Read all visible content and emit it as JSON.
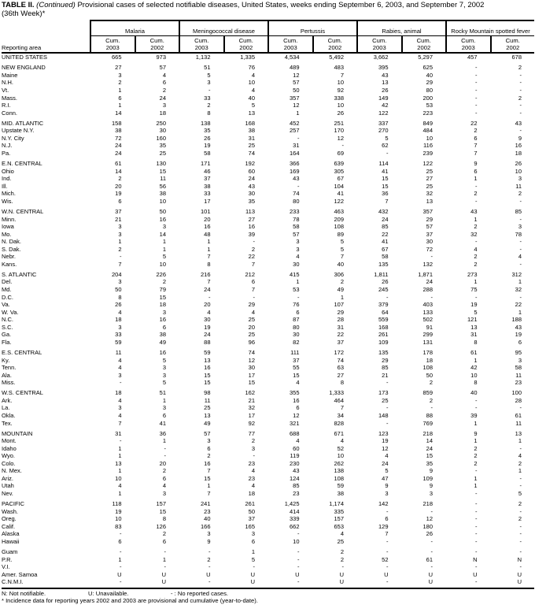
{
  "title": {
    "bold": "TABLE II.",
    "italic": "(Continued)",
    "rest": "Provisional cases of selected notifiable diseases, United States, weeks ending September 6, 2003, and September 7, 2002",
    "line2": "(36th Week)*"
  },
  "header": {
    "reporting_area": "Reporting area",
    "cum_label": "Cum.",
    "years": [
      "2003",
      "2002"
    ],
    "groups": [
      "Malaria",
      "Meningococcal disease",
      "Pertussis",
      "Rabies, animal",
      "Rocky Mountain spotted fever"
    ]
  },
  "rows": [
    {
      "area": "UNITED STATES",
      "values": [
        "665",
        "973",
        "1,132",
        "1,335",
        "4,534",
        "5,492",
        "3,662",
        "5,297",
        "457",
        "678"
      ]
    },
    {
      "area": "NEW ENGLAND",
      "gap": true,
      "values": [
        "27",
        "57",
        "51",
        "76",
        "489",
        "483",
        "395",
        "625",
        "-",
        "2"
      ]
    },
    {
      "area": "Maine",
      "values": [
        "3",
        "4",
        "5",
        "4",
        "12",
        "7",
        "43",
        "40",
        "-",
        "-"
      ]
    },
    {
      "area": "N.H.",
      "values": [
        "2",
        "6",
        "3",
        "10",
        "57",
        "10",
        "13",
        "29",
        "-",
        "-"
      ]
    },
    {
      "area": "Vt.",
      "values": [
        "1",
        "2",
        "-",
        "4",
        "50",
        "92",
        "26",
        "80",
        "-",
        "-"
      ]
    },
    {
      "area": "Mass.",
      "values": [
        "6",
        "24",
        "33",
        "40",
        "357",
        "338",
        "149",
        "200",
        "-",
        "2"
      ]
    },
    {
      "area": "R.I.",
      "values": [
        "1",
        "3",
        "2",
        "5",
        "12",
        "10",
        "42",
        "53",
        "-",
        "-"
      ]
    },
    {
      "area": "Conn.",
      "values": [
        "14",
        "18",
        "8",
        "13",
        "1",
        "26",
        "122",
        "223",
        "-",
        "-"
      ]
    },
    {
      "area": "MID. ATLANTIC",
      "gap": true,
      "values": [
        "158",
        "250",
        "138",
        "168",
        "452",
        "251",
        "337",
        "849",
        "22",
        "43"
      ]
    },
    {
      "area": "Upstate N.Y.",
      "values": [
        "38",
        "30",
        "35",
        "38",
        "257",
        "170",
        "270",
        "484",
        "2",
        "-"
      ]
    },
    {
      "area": "N.Y. City",
      "values": [
        "72",
        "160",
        "26",
        "31",
        "-",
        "12",
        "5",
        "10",
        "6",
        "9"
      ]
    },
    {
      "area": "N.J.",
      "values": [
        "24",
        "35",
        "19",
        "25",
        "31",
        "-",
        "62",
        "116",
        "7",
        "16"
      ]
    },
    {
      "area": "Pa.",
      "values": [
        "24",
        "25",
        "58",
        "74",
        "164",
        "69",
        "-",
        "239",
        "7",
        "18"
      ]
    },
    {
      "area": "E.N. CENTRAL",
      "gap": true,
      "values": [
        "61",
        "130",
        "171",
        "192",
        "366",
        "639",
        "114",
        "122",
        "9",
        "26"
      ]
    },
    {
      "area": "Ohio",
      "values": [
        "14",
        "15",
        "46",
        "60",
        "169",
        "305",
        "41",
        "25",
        "6",
        "10"
      ]
    },
    {
      "area": "Ind.",
      "values": [
        "2",
        "11",
        "37",
        "24",
        "43",
        "67",
        "15",
        "27",
        "1",
        "3"
      ]
    },
    {
      "area": "Ill.",
      "values": [
        "20",
        "56",
        "38",
        "43",
        "-",
        "104",
        "15",
        "25",
        "-",
        "11"
      ]
    },
    {
      "area": "Mich.",
      "values": [
        "19",
        "38",
        "33",
        "30",
        "74",
        "41",
        "36",
        "32",
        "2",
        "2"
      ]
    },
    {
      "area": "Wis.",
      "values": [
        "6",
        "10",
        "17",
        "35",
        "80",
        "122",
        "7",
        "13",
        "-",
        "-"
      ]
    },
    {
      "area": "W.N. CENTRAL",
      "gap": true,
      "values": [
        "37",
        "50",
        "101",
        "113",
        "233",
        "463",
        "432",
        "357",
        "43",
        "85"
      ]
    },
    {
      "area": "Minn.",
      "values": [
        "21",
        "16",
        "20",
        "27",
        "78",
        "209",
        "24",
        "29",
        "1",
        "-"
      ]
    },
    {
      "area": "Iowa",
      "values": [
        "3",
        "3",
        "16",
        "16",
        "58",
        "108",
        "85",
        "57",
        "2",
        "3"
      ]
    },
    {
      "area": "Mo.",
      "values": [
        "3",
        "14",
        "48",
        "39",
        "57",
        "89",
        "22",
        "37",
        "32",
        "78"
      ]
    },
    {
      "area": "N. Dak.",
      "values": [
        "1",
        "1",
        "1",
        "-",
        "3",
        "5",
        "41",
        "30",
        "-",
        "-"
      ]
    },
    {
      "area": "S. Dak.",
      "values": [
        "2",
        "1",
        "1",
        "2",
        "3",
        "5",
        "67",
        "72",
        "4",
        "-"
      ]
    },
    {
      "area": "Nebr.",
      "values": [
        "-",
        "5",
        "7",
        "22",
        "4",
        "7",
        "58",
        "-",
        "2",
        "4"
      ]
    },
    {
      "area": "Kans.",
      "values": [
        "7",
        "10",
        "8",
        "7",
        "30",
        "40",
        "135",
        "132",
        "2",
        "-"
      ]
    },
    {
      "area": "S. ATLANTIC",
      "gap": true,
      "values": [
        "204",
        "226",
        "216",
        "212",
        "415",
        "306",
        "1,811",
        "1,871",
        "273",
        "312"
      ]
    },
    {
      "area": "Del.",
      "values": [
        "3",
        "2",
        "7",
        "6",
        "1",
        "2",
        "26",
        "24",
        "1",
        "1"
      ]
    },
    {
      "area": "Md.",
      "values": [
        "50",
        "79",
        "24",
        "7",
        "53",
        "49",
        "245",
        "288",
        "75",
        "32"
      ]
    },
    {
      "area": "D.C.",
      "values": [
        "8",
        "15",
        "-",
        "-",
        "-",
        "1",
        "-",
        "-",
        "-",
        "-"
      ]
    },
    {
      "area": "Va.",
      "values": [
        "26",
        "18",
        "20",
        "29",
        "76",
        "107",
        "379",
        "403",
        "19",
        "22"
      ]
    },
    {
      "area": "W. Va.",
      "values": [
        "4",
        "3",
        "4",
        "4",
        "6",
        "29",
        "64",
        "133",
        "5",
        "1"
      ]
    },
    {
      "area": "N.C.",
      "values": [
        "18",
        "16",
        "30",
        "25",
        "87",
        "28",
        "559",
        "502",
        "121",
        "188"
      ]
    },
    {
      "area": "S.C.",
      "values": [
        "3",
        "6",
        "19",
        "20",
        "80",
        "31",
        "168",
        "91",
        "13",
        "43"
      ]
    },
    {
      "area": "Ga.",
      "values": [
        "33",
        "38",
        "24",
        "25",
        "30",
        "22",
        "261",
        "299",
        "31",
        "19"
      ]
    },
    {
      "area": "Fla.",
      "values": [
        "59",
        "49",
        "88",
        "96",
        "82",
        "37",
        "109",
        "131",
        "8",
        "6"
      ]
    },
    {
      "area": "E.S. CENTRAL",
      "gap": true,
      "values": [
        "11",
        "16",
        "59",
        "74",
        "111",
        "172",
        "135",
        "178",
        "61",
        "95"
      ]
    },
    {
      "area": "Ky.",
      "values": [
        "4",
        "5",
        "13",
        "12",
        "37",
        "74",
        "29",
        "18",
        "1",
        "3"
      ]
    },
    {
      "area": "Tenn.",
      "values": [
        "4",
        "3",
        "16",
        "30",
        "55",
        "63",
        "85",
        "108",
        "42",
        "58"
      ]
    },
    {
      "area": "Ala.",
      "values": [
        "3",
        "3",
        "15",
        "17",
        "15",
        "27",
        "21",
        "50",
        "10",
        "11"
      ]
    },
    {
      "area": "Miss.",
      "values": [
        "-",
        "5",
        "15",
        "15",
        "4",
        "8",
        "-",
        "2",
        "8",
        "23"
      ]
    },
    {
      "area": "W.S. CENTRAL",
      "gap": true,
      "values": [
        "18",
        "51",
        "98",
        "162",
        "355",
        "1,333",
        "173",
        "859",
        "40",
        "100"
      ]
    },
    {
      "area": "Ark.",
      "values": [
        "4",
        "1",
        "11",
        "21",
        "16",
        "464",
        "25",
        "2",
        "-",
        "28"
      ]
    },
    {
      "area": "La.",
      "values": [
        "3",
        "3",
        "25",
        "32",
        "6",
        "7",
        "-",
        "-",
        "-",
        "-"
      ]
    },
    {
      "area": "Okla.",
      "values": [
        "4",
        "6",
        "13",
        "17",
        "12",
        "34",
        "148",
        "88",
        "39",
        "61"
      ]
    },
    {
      "area": "Tex.",
      "values": [
        "7",
        "41",
        "49",
        "92",
        "321",
        "828",
        "-",
        "769",
        "1",
        "11"
      ]
    },
    {
      "area": "MOUNTAIN",
      "gap": true,
      "values": [
        "31",
        "36",
        "57",
        "77",
        "688",
        "671",
        "123",
        "218",
        "9",
        "13"
      ]
    },
    {
      "area": "Mont.",
      "values": [
        "-",
        "1",
        "3",
        "2",
        "4",
        "4",
        "19",
        "14",
        "1",
        "1"
      ]
    },
    {
      "area": "Idaho",
      "values": [
        "1",
        "-",
        "6",
        "3",
        "60",
        "52",
        "12",
        "24",
        "2",
        "-"
      ]
    },
    {
      "area": "Wyo.",
      "values": [
        "1",
        "-",
        "2",
        "-",
        "119",
        "10",
        "4",
        "15",
        "2",
        "4"
      ]
    },
    {
      "area": "Colo.",
      "values": [
        "13",
        "20",
        "16",
        "23",
        "230",
        "262",
        "24",
        "35",
        "2",
        "2"
      ]
    },
    {
      "area": "N. Mex.",
      "values": [
        "1",
        "2",
        "7",
        "4",
        "43",
        "138",
        "5",
        "9",
        "-",
        "1"
      ]
    },
    {
      "area": "Ariz.",
      "values": [
        "10",
        "6",
        "15",
        "23",
        "124",
        "108",
        "47",
        "109",
        "1",
        "-"
      ]
    },
    {
      "area": "Utah",
      "values": [
        "4",
        "4",
        "1",
        "4",
        "85",
        "59",
        "9",
        "9",
        "1",
        "-"
      ]
    },
    {
      "area": "Nev.",
      "values": [
        "1",
        "3",
        "7",
        "18",
        "23",
        "38",
        "3",
        "3",
        "-",
        "5"
      ]
    },
    {
      "area": "PACIFIC",
      "gap": true,
      "values": [
        "118",
        "157",
        "241",
        "261",
        "1,425",
        "1,174",
        "142",
        "218",
        "-",
        "2"
      ]
    },
    {
      "area": "Wash.",
      "values": [
        "19",
        "15",
        "23",
        "50",
        "414",
        "335",
        "-",
        "-",
        "-",
        "-"
      ]
    },
    {
      "area": "Oreg.",
      "values": [
        "10",
        "8",
        "40",
        "37",
        "339",
        "157",
        "6",
        "12",
        "-",
        "2"
      ]
    },
    {
      "area": "Calif.",
      "values": [
        "83",
        "126",
        "166",
        "165",
        "662",
        "653",
        "129",
        "180",
        "-",
        "-"
      ]
    },
    {
      "area": "Alaska",
      "values": [
        "-",
        "2",
        "3",
        "3",
        "-",
        "4",
        "7",
        "26",
        "-",
        "-"
      ]
    },
    {
      "area": "Hawaii",
      "values": [
        "6",
        "6",
        "9",
        "6",
        "10",
        "25",
        "-",
        "-",
        "-",
        "-"
      ]
    },
    {
      "area": "Guam",
      "gap": true,
      "values": [
        "-",
        "-",
        "-",
        "1",
        "-",
        "2",
        "-",
        "-",
        "-",
        "-"
      ]
    },
    {
      "area": "P.R.",
      "values": [
        "1",
        "1",
        "2",
        "5",
        "-",
        "2",
        "52",
        "61",
        "N",
        "N"
      ]
    },
    {
      "area": "V.I.",
      "values": [
        "-",
        "-",
        "-",
        "-",
        "-",
        "-",
        "-",
        "-",
        "-",
        "-"
      ]
    },
    {
      "area": "Amer. Samoa",
      "values": [
        "U",
        "U",
        "U",
        "U",
        "U",
        "U",
        "U",
        "U",
        "U",
        "U"
      ]
    },
    {
      "area": "C.N.M.I.",
      "values": [
        "-",
        "U",
        "-",
        "U",
        "-",
        "U",
        "-",
        "U",
        "-",
        "U"
      ]
    }
  ],
  "footnotes": {
    "legend": [
      "N: Not notifiable.",
      "U: Unavailable.",
      "- : No reported cases."
    ],
    "note": "* Incidence data for reporting years 2002 and 2003 are provisional and cumulative (year-to-date)."
  }
}
